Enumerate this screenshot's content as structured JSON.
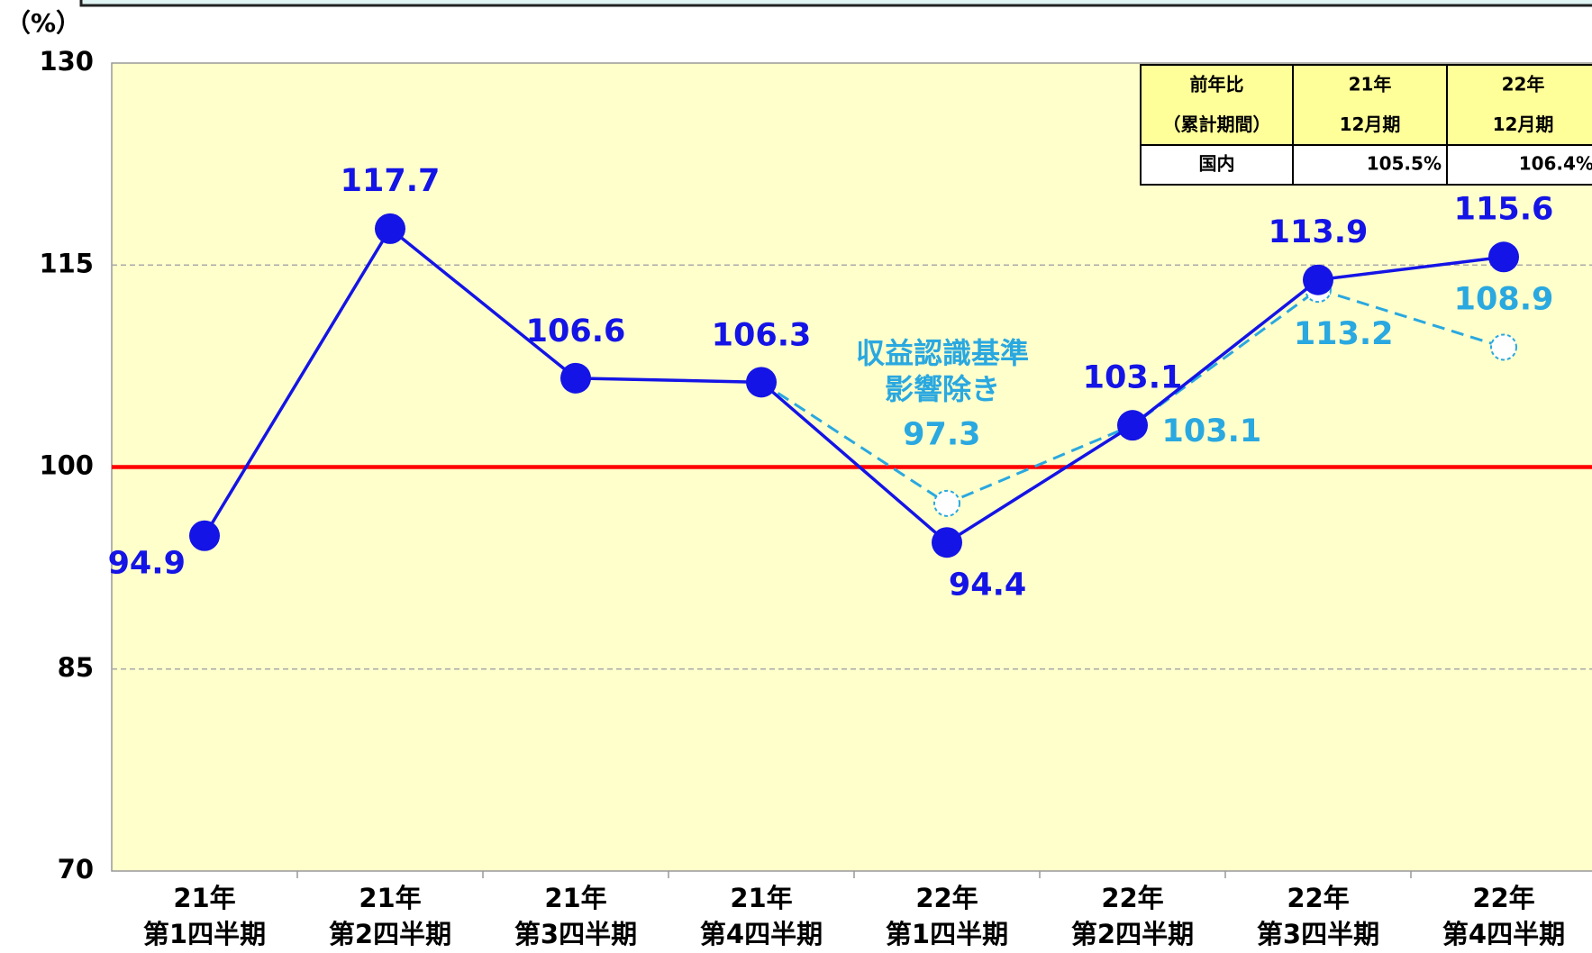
{
  "chart_data": {
    "type": "line",
    "ylabel": "（%）",
    "categories": [
      [
        "21年",
        "第1四半期"
      ],
      [
        "21年",
        "第2四半期"
      ],
      [
        "21年",
        "第3四半期"
      ],
      [
        "21年",
        "第4四半期"
      ],
      [
        "22年",
        "第1四半期"
      ],
      [
        "22年",
        "第2四半期"
      ],
      [
        "22年",
        "第3四半期"
      ],
      [
        "22年",
        "第4四半期"
      ]
    ],
    "series": [
      {
        "color": "#1414e6",
        "dashed": false,
        "values": [
          94.9,
          117.7,
          106.6,
          106.3,
          94.4,
          103.1,
          113.9,
          115.6
        ]
      },
      {
        "color": "#2aa8e0",
        "dashed": true,
        "values": [
          null,
          null,
          null,
          106.3,
          97.3,
          103.1,
          113.2,
          108.9
        ]
      }
    ],
    "annotations": [
      "収益認識基準",
      "影響除き"
    ],
    "ylim": [
      70,
      130
    ],
    "yticks": [
      70,
      85,
      100,
      115,
      130
    ],
    "grid": true,
    "reference_line": {
      "value": 100,
      "color": "#ff0000"
    },
    "background": "#ffffcc",
    "table": {
      "header": [
        [
          "前年比",
          "（累計期間）"
        ],
        [
          "21年",
          "12月期"
        ],
        [
          "22年",
          "12月期"
        ]
      ],
      "rows": [
        [
          "国内",
          "105.5%",
          "106.4%"
        ]
      ]
    }
  }
}
